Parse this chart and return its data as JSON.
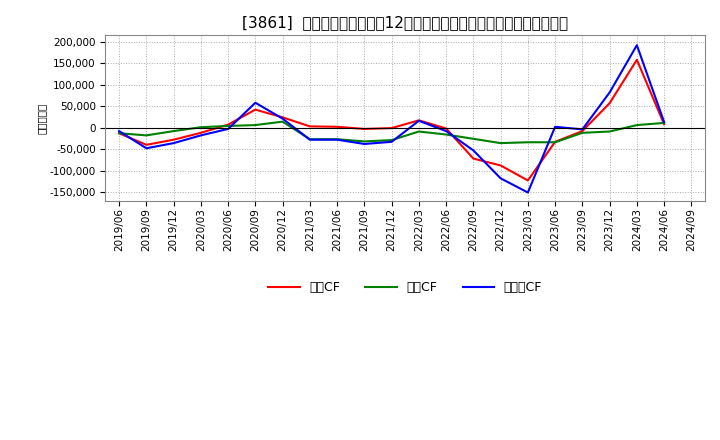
{
  "title": "[3861]  キャッシュフローの12か月移動合計の対前年同期増減額の推移",
  "ylabel": "（百万円）",
  "background_color": "#ffffff",
  "plot_bg_color": "#ffffff",
  "grid_color": "#aaaaaa",
  "ylim": [
    -170000,
    215000
  ],
  "yticks": [
    -150000,
    -100000,
    -50000,
    0,
    50000,
    100000,
    150000,
    200000
  ],
  "x_labels": [
    "2019/06",
    "2019/09",
    "2019/12",
    "2020/03",
    "2020/06",
    "2020/09",
    "2020/12",
    "2021/03",
    "2021/06",
    "2021/09",
    "2021/12",
    "2022/03",
    "2022/06",
    "2022/09",
    "2022/12",
    "2023/03",
    "2023/06",
    "2023/09",
    "2023/12",
    "2024/03",
    "2024/06",
    "2024/09"
  ],
  "operating_cf": [
    -13000,
    -40000,
    -28000,
    -12000,
    7000,
    42000,
    24000,
    3000,
    2000,
    -3000,
    -1000,
    17000,
    -2000,
    -72000,
    -88000,
    -123000,
    -33000,
    -8000,
    57000,
    158000,
    8000,
    null
  ],
  "investing_cf": [
    -13000,
    -18000,
    -8000,
    1000,
    4000,
    6000,
    14000,
    -27000,
    -27000,
    -32000,
    -29000,
    -9000,
    -16000,
    -26000,
    -36000,
    -34000,
    -34000,
    -12000,
    -9000,
    6000,
    11000,
    null
  ],
  "free_cf": [
    -8000,
    -48000,
    -36000,
    -18000,
    -3000,
    58000,
    21000,
    -28000,
    -28000,
    -38000,
    -33000,
    16000,
    -8000,
    -53000,
    -118000,
    -151000,
    2000,
    -4000,
    82000,
    192000,
    13000,
    null
  ],
  "line_colors": {
    "operating": "#ff0000",
    "investing": "#008000",
    "free": "#0000ff"
  },
  "legend_labels": [
    "営業CF",
    "投資CF",
    "フリーCF"
  ],
  "line_width": 1.5,
  "title_fontsize": 11,
  "axis_fontsize": 7.5,
  "legend_fontsize": 9
}
